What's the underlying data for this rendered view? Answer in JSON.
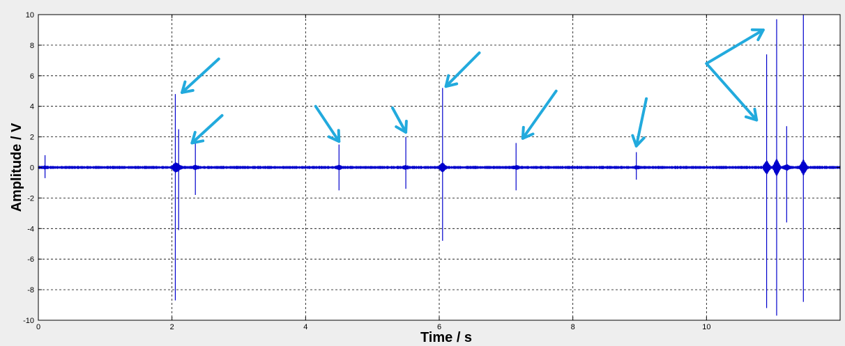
{
  "chart_data": {
    "type": "line",
    "title": "",
    "xlabel": "Time / s",
    "ylabel": "Amplitude / V",
    "xlim": [
      0,
      12
    ],
    "ylim": [
      -10,
      10
    ],
    "x_ticks": [
      0,
      2,
      4,
      6,
      8,
      10
    ],
    "y_ticks": [
      -10,
      -8,
      -6,
      -4,
      -2,
      0,
      2,
      4,
      6,
      8,
      10
    ],
    "grid": true,
    "series_color": "#0000cc",
    "annotation_color": "#22aadd",
    "series": [
      {
        "baseline_noise_amplitude": 0.1,
        "spikes": [
          {
            "x": 0.1,
            "max": 0.8,
            "min": -0.7
          },
          {
            "x": 2.05,
            "max": 4.8,
            "min": -8.7
          },
          {
            "x": 2.1,
            "max": 2.5,
            "min": -4.1
          },
          {
            "x": 2.35,
            "max": 1.6,
            "min": -1.8
          },
          {
            "x": 4.5,
            "max": 1.5,
            "min": -1.5
          },
          {
            "x": 5.5,
            "max": 2.0,
            "min": -1.4
          },
          {
            "x": 6.05,
            "max": 5.2,
            "min": -4.8
          },
          {
            "x": 7.15,
            "max": 1.6,
            "min": -1.5
          },
          {
            "x": 8.95,
            "max": 1.0,
            "min": -0.8
          },
          {
            "x": 10.9,
            "max": 7.4,
            "min": -9.2
          },
          {
            "x": 11.05,
            "max": 9.7,
            "min": -9.7
          },
          {
            "x": 11.2,
            "max": 2.7,
            "min": -3.6
          },
          {
            "x": 11.45,
            "max": 10.0,
            "min": -8.8
          }
        ]
      }
    ],
    "annotations": [
      {
        "type": "arrow",
        "from": [
          2.7,
          7.1
        ],
        "to": [
          2.15,
          4.9
        ]
      },
      {
        "type": "arrow",
        "from": [
          2.75,
          3.4
        ],
        "to": [
          2.3,
          1.6
        ]
      },
      {
        "type": "arrow",
        "from": [
          4.15,
          4.0
        ],
        "to": [
          4.5,
          1.7
        ]
      },
      {
        "type": "arrow",
        "from": [
          5.3,
          3.9
        ],
        "to": [
          5.5,
          2.3
        ]
      },
      {
        "type": "arrow",
        "from": [
          6.6,
          7.5
        ],
        "to": [
          6.1,
          5.3
        ]
      },
      {
        "type": "arrow",
        "from": [
          7.75,
          5.0
        ],
        "to": [
          7.25,
          1.9
        ]
      },
      {
        "type": "arrow",
        "from": [
          9.1,
          4.5
        ],
        "to": [
          8.95,
          1.4
        ]
      },
      {
        "type": "arrow",
        "from": [
          10.0,
          6.8
        ],
        "to": [
          10.85,
          9.0
        ]
      },
      {
        "type": "arrow",
        "from": [
          10.0,
          6.8
        ],
        "to": [
          10.75,
          3.1
        ]
      }
    ]
  }
}
